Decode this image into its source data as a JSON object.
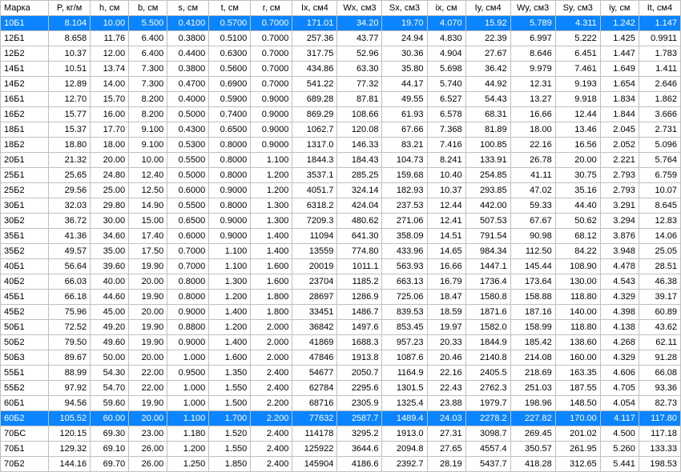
{
  "table": {
    "columns": [
      "Марка",
      "P, кг/м",
      "h, см",
      "b, см",
      "s, см",
      "t, см",
      "r, см",
      "Ix, см4",
      "Wx, см3",
      "Sx, см3",
      "ix, см",
      "Iy, см4",
      "Wy, см3",
      "Sy, см3",
      "iy, см",
      "It, см4"
    ],
    "selected_rows": [
      0,
      26
    ],
    "colors": {
      "selected_bg": "#0a84ff",
      "selected_fg": "#ffffff",
      "border": "#c0c0c0",
      "bg": "#ffffff",
      "fg": "#000000"
    },
    "font_size": 11,
    "rows": [
      [
        "10Б1",
        "8.104",
        "10.00",
        "5.500",
        "0.4100",
        "0.5700",
        "0.7000",
        "171.01",
        "34.20",
        "19.70",
        "4.070",
        "15.92",
        "5.789",
        "4.311",
        "1.242",
        "1.147"
      ],
      [
        "12Б1",
        "8.658",
        "11.76",
        "6.400",
        "0.3800",
        "0.5100",
        "0.7000",
        "257.36",
        "43.77",
        "24.94",
        "4.830",
        "22.39",
        "6.997",
        "5.222",
        "1.425",
        "0.9911"
      ],
      [
        "12Б2",
        "10.37",
        "12.00",
        "6.400",
        "0.4400",
        "0.6300",
        "0.7000",
        "317.75",
        "52.96",
        "30.36",
        "4.904",
        "27.67",
        "8.646",
        "6.451",
        "1.447",
        "1.783"
      ],
      [
        "14Б1",
        "10.51",
        "13.74",
        "7.300",
        "0.3800",
        "0.5600",
        "0.7000",
        "434.86",
        "63.30",
        "35.80",
        "5.698",
        "36.42",
        "9.979",
        "7.461",
        "1.649",
        "1.411"
      ],
      [
        "14Б2",
        "12.89",
        "14.00",
        "7.300",
        "0.4700",
        "0.6900",
        "0.7000",
        "541.22",
        "77.32",
        "44.17",
        "5.740",
        "44.92",
        "12.31",
        "9.193",
        "1.654",
        "2.646"
      ],
      [
        "16Б1",
        "12.70",
        "15.70",
        "8.200",
        "0.4000",
        "0.5900",
        "0.9000",
        "689.28",
        "87.81",
        "49.55",
        "6.527",
        "54.43",
        "13.27",
        "9.918",
        "1.834",
        "1.862"
      ],
      [
        "16Б2",
        "15.77",
        "16.00",
        "8.200",
        "0.5000",
        "0.7400",
        "0.9000",
        "869.29",
        "108.66",
        "61.93",
        "6.578",
        "68.31",
        "16.66",
        "12.44",
        "1.844",
        "3.666"
      ],
      [
        "18Б1",
        "15.37",
        "17.70",
        "9.100",
        "0.4300",
        "0.6500",
        "0.9000",
        "1062.7",
        "120.08",
        "67.66",
        "7.368",
        "81.89",
        "18.00",
        "13.46",
        "2.045",
        "2.731"
      ],
      [
        "18Б2",
        "18.80",
        "18.00",
        "9.100",
        "0.5300",
        "0.8000",
        "0.9000",
        "1317.0",
        "146.33",
        "83.21",
        "7.416",
        "100.85",
        "22.16",
        "16.56",
        "2.052",
        "5.096"
      ],
      [
        "20Б1",
        "21.32",
        "20.00",
        "10.00",
        "0.5500",
        "0.8000",
        "1.100",
        "1844.3",
        "184.43",
        "104.73",
        "8.241",
        "133.91",
        "26.78",
        "20.00",
        "2.221",
        "5.764"
      ],
      [
        "25Б1",
        "25.65",
        "24.80",
        "12.40",
        "0.5000",
        "0.8000",
        "1.200",
        "3537.1",
        "285.25",
        "159.68",
        "10.40",
        "254.85",
        "41.11",
        "30.75",
        "2.793",
        "6.759"
      ],
      [
        "25Б2",
        "29.56",
        "25.00",
        "12.50",
        "0.6000",
        "0.9000",
        "1.200",
        "4051.7",
        "324.14",
        "182.93",
        "10.37",
        "293.85",
        "47.02",
        "35.16",
        "2.793",
        "10.07"
      ],
      [
        "30Б1",
        "32.03",
        "29.80",
        "14.90",
        "0.5500",
        "0.8000",
        "1.300",
        "6318.2",
        "424.04",
        "237.53",
        "12.44",
        "442.00",
        "59.33",
        "44.40",
        "3.291",
        "8.645"
      ],
      [
        "30Б2",
        "36.72",
        "30.00",
        "15.00",
        "0.6500",
        "0.9000",
        "1.300",
        "7209.3",
        "480.62",
        "271.06",
        "12.41",
        "507.53",
        "67.67",
        "50.62",
        "3.294",
        "12.83"
      ],
      [
        "35Б1",
        "41.36",
        "34.60",
        "17.40",
        "0.6000",
        "0.9000",
        "1.400",
        "11094",
        "641.30",
        "358.09",
        "14.51",
        "791.54",
        "90.98",
        "68.12",
        "3.876",
        "14.06"
      ],
      [
        "35Б2",
        "49.57",
        "35.00",
        "17.50",
        "0.7000",
        "1.100",
        "1.400",
        "13559",
        "774.80",
        "433.96",
        "14.65",
        "984.34",
        "112.50",
        "84.22",
        "3.948",
        "25.05"
      ],
      [
        "40Б1",
        "56.64",
        "39.60",
        "19.90",
        "0.7000",
        "1.100",
        "1.600",
        "20019",
        "1011.1",
        "563.93",
        "16.66",
        "1447.1",
        "145.44",
        "108.90",
        "4.478",
        "28.51"
      ],
      [
        "40Б2",
        "66.03",
        "40.00",
        "20.00",
        "0.8000",
        "1.300",
        "1.600",
        "23704",
        "1185.2",
        "663.13",
        "16.79",
        "1736.4",
        "173.64",
        "130.00",
        "4.543",
        "46.38"
      ],
      [
        "45Б1",
        "66.18",
        "44.60",
        "19.90",
        "0.8000",
        "1.200",
        "1.800",
        "28697",
        "1286.9",
        "725.06",
        "18.47",
        "1580.8",
        "158.88",
        "118.80",
        "4.329",
        "39.17"
      ],
      [
        "45Б2",
        "75.96",
        "45.00",
        "20.00",
        "0.9000",
        "1.400",
        "1.800",
        "33451",
        "1486.7",
        "839.53",
        "18.59",
        "1871.6",
        "187.16",
        "140.00",
        "4.398",
        "60.89"
      ],
      [
        "50Б1",
        "72.52",
        "49.20",
        "19.90",
        "0.8800",
        "1.200",
        "2.000",
        "36842",
        "1497.6",
        "853.45",
        "19.97",
        "1582.0",
        "158.99",
        "118.80",
        "4.138",
        "43.62"
      ],
      [
        "50Б2",
        "79.50",
        "49.60",
        "19.90",
        "0.9000",
        "1.400",
        "2.000",
        "41869",
        "1688.3",
        "957.23",
        "20.33",
        "1844.9",
        "185.42",
        "138.60",
        "4.268",
        "62.11"
      ],
      [
        "50Б3",
        "89.67",
        "50.00",
        "20.00",
        "1.000",
        "1.600",
        "2.000",
        "47846",
        "1913.8",
        "1087.6",
        "20.46",
        "2140.8",
        "214.08",
        "160.00",
        "4.329",
        "91.28"
      ],
      [
        "55Б1",
        "88.99",
        "54.30",
        "22.00",
        "0.9500",
        "1.350",
        "2.400",
        "54677",
        "2050.7",
        "1164.9",
        "22.16",
        "2405.5",
        "218.69",
        "163.35",
        "4.606",
        "66.08"
      ],
      [
        "55Б2",
        "97.92",
        "54.70",
        "22.00",
        "1.000",
        "1.550",
        "2.400",
        "62784",
        "2295.6",
        "1301.5",
        "22.43",
        "2762.3",
        "251.03",
        "187.55",
        "4.705",
        "93.36"
      ],
      [
        "60Б1",
        "94.56",
        "59.60",
        "19.90",
        "1.000",
        "1.500",
        "2.200",
        "68716",
        "2305.9",
        "1325.4",
        "23.88",
        "1979.7",
        "198.96",
        "148.50",
        "4.054",
        "82.73"
      ],
      [
        "60Б2",
        "105.52",
        "60.00",
        "20.00",
        "1.100",
        "1.700",
        "2.200",
        "77632",
        "2587.7",
        "1489.4",
        "24.03",
        "2278.2",
        "227.82",
        "170.00",
        "4.117",
        "117.80"
      ],
      [
        "70БС",
        "120.15",
        "69.30",
        "23.00",
        "1.180",
        "1.520",
        "2.400",
        "114178",
        "3295.2",
        "1913.0",
        "27.31",
        "3098.7",
        "269.45",
        "201.02",
        "4.500",
        "117.18"
      ],
      [
        "70Б1",
        "129.32",
        "69.10",
        "26.00",
        "1.200",
        "1.550",
        "2.400",
        "125922",
        "3644.6",
        "2094.8",
        "27.65",
        "4557.4",
        "350.57",
        "261.95",
        "5.260",
        "133.33"
      ],
      [
        "70Б2",
        "144.16",
        "69.70",
        "26.00",
        "1.250",
        "1.850",
        "2.400",
        "145904",
        "4186.6",
        "2392.7",
        "28.19",
        "5437.7",
        "418.28",
        "312.65",
        "5.441",
        "198.53"
      ]
    ]
  }
}
